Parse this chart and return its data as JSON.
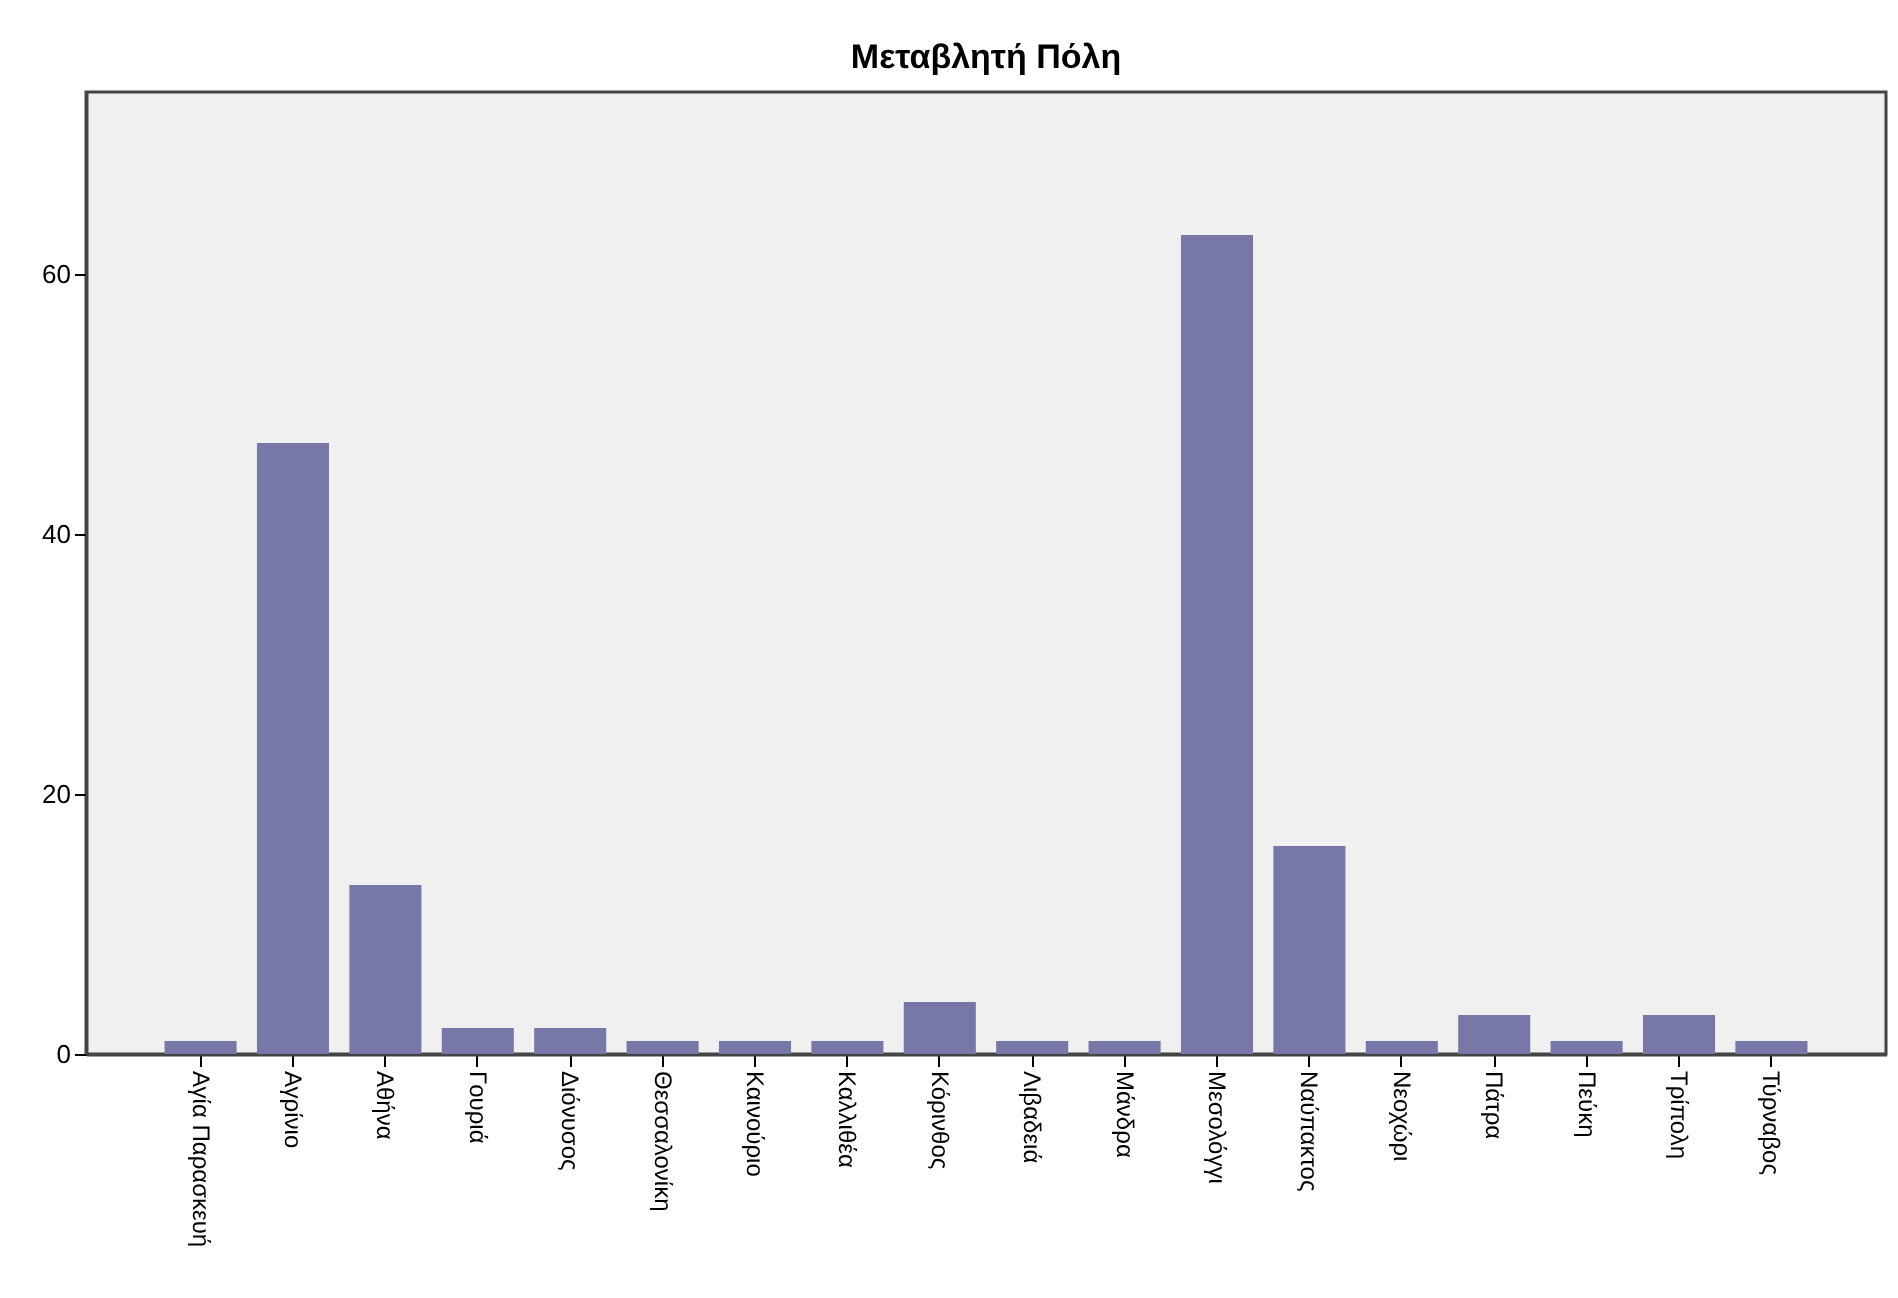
{
  "chart_data": {
    "type": "bar",
    "title": "Μεταβλητή Πόλη",
    "categories": [
      "Αγία Παρασκευή",
      "Αγρίνιο",
      "Αθήνα",
      "Γουριά",
      "Διόνυσος",
      "Θεσσαλονίκη",
      "Καινούριο",
      "Καλλιθέα",
      "Κόρινθος",
      "Λιβαδειά",
      "Μάνδρα",
      "Μεσολόγγι",
      "Ναύπακτος",
      "Νεοχώρι",
      "Πάτρα",
      "Πεύκη",
      "Τρίπολη",
      "Τύρναβος"
    ],
    "values": [
      1,
      47,
      13,
      2,
      2,
      1,
      1,
      1,
      4,
      1,
      1,
      63,
      16,
      1,
      3,
      1,
      3,
      1
    ],
    "color": "#7878a8",
    "ylim": [
      0,
      74
    ],
    "yticks": [
      0,
      20,
      40,
      60
    ],
    "grid": false
  }
}
